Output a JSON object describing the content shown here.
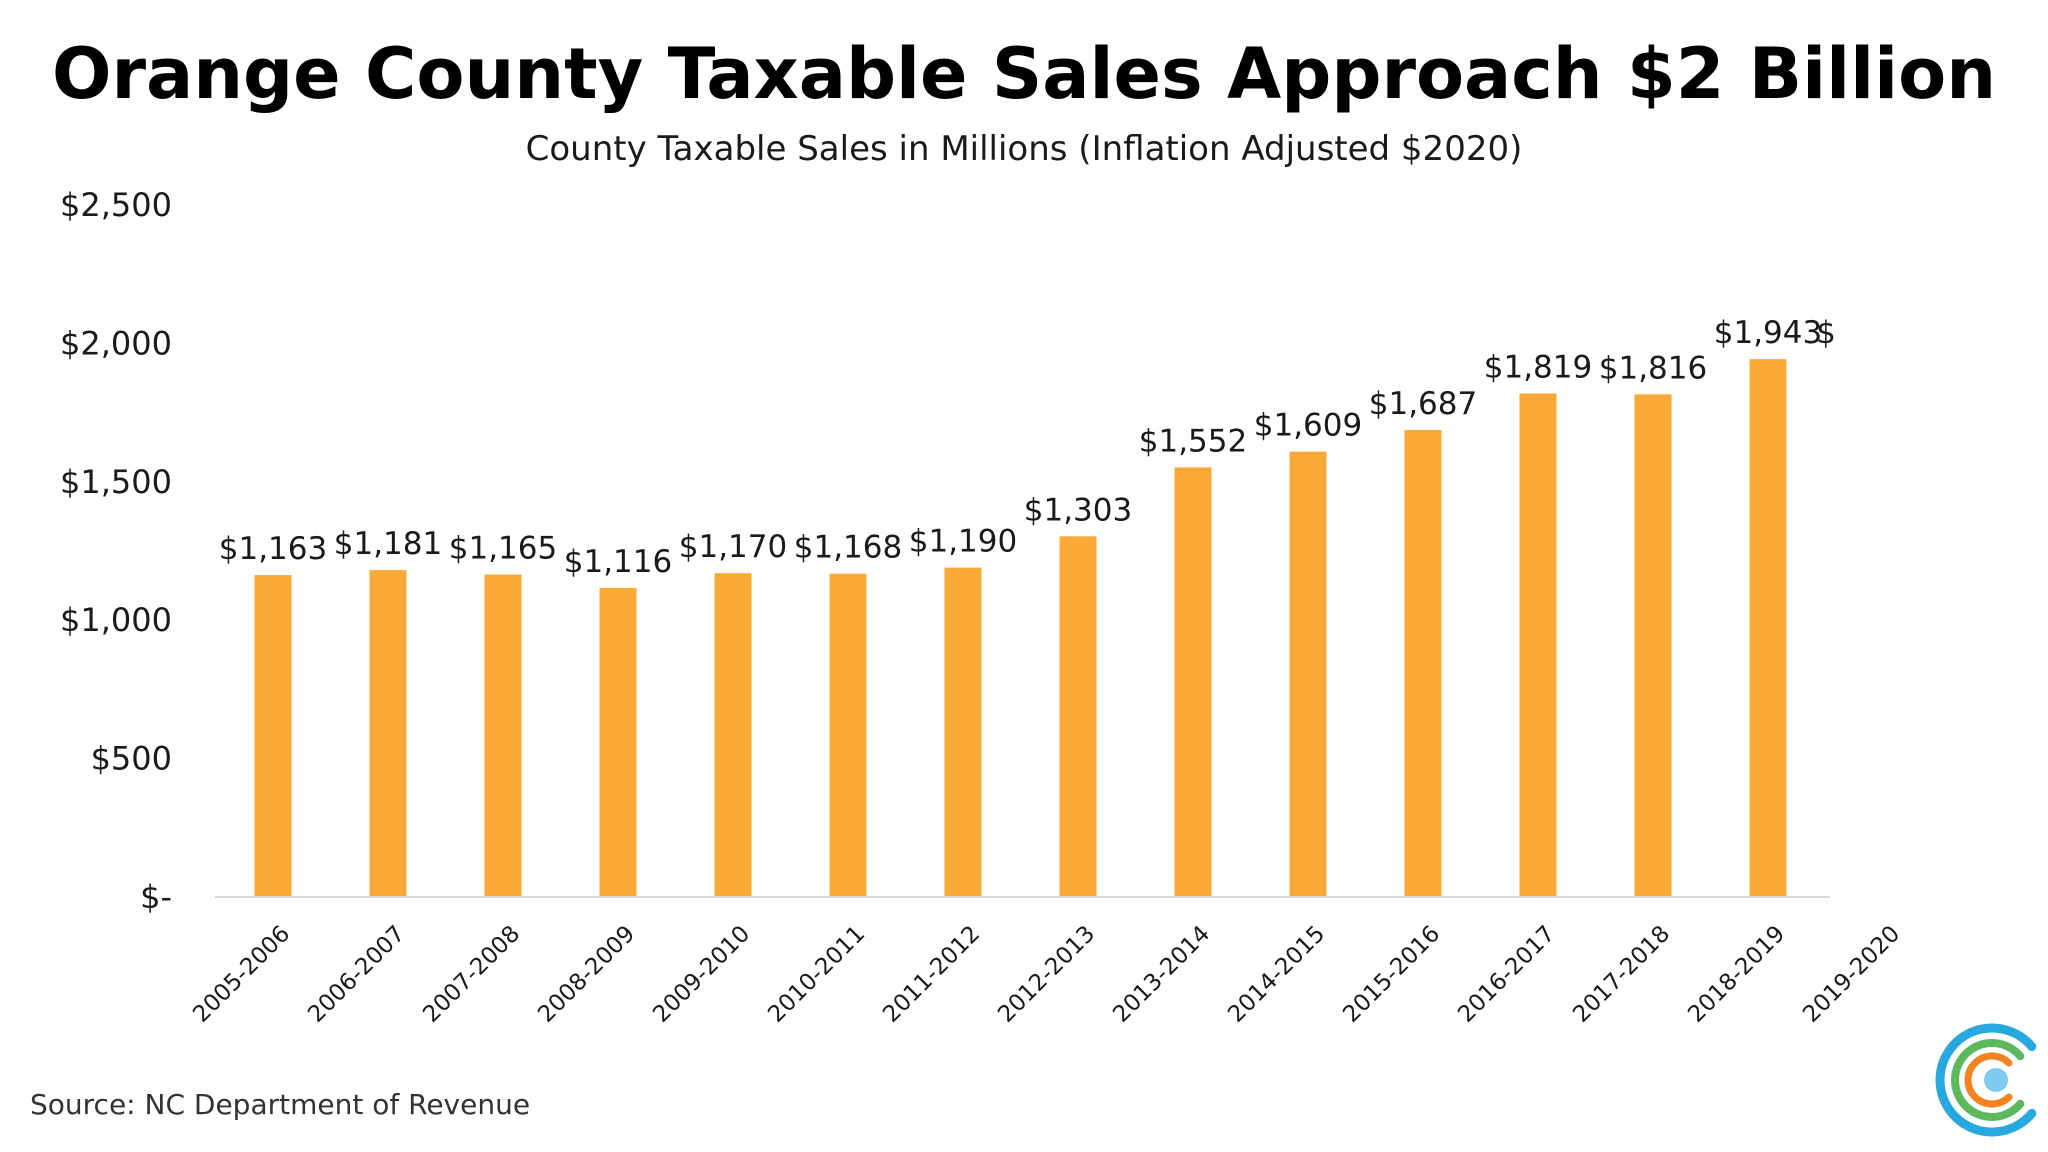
{
  "colors": {
    "bar": "#F9A935",
    "axis": "#D9D9D9",
    "text": "#1a1a1a",
    "logo_blue": "#29A8E0",
    "logo_green": "#5CB85C",
    "logo_orange": "#F58220",
    "logo_dot": "#7FCBF0"
  },
  "logo": {
    "icon": "concentric-c-logo-icon"
  },
  "source": "Source: NC Department of Revenue",
  "chart_data": {
    "type": "bar",
    "title": "Orange County Taxable Sales Approach $2 Billion",
    "subtitle": "County Taxable Sales in Millions (Inflation Adjusted $2020)",
    "xlabel": "",
    "ylabel": "",
    "ylim": [
      0,
      2500
    ],
    "yticks": [
      {
        "value": 2500,
        "label": "$2,500"
      },
      {
        "value": 2000,
        "label": "$2,000"
      },
      {
        "value": 1500,
        "label": "$1,500"
      },
      {
        "value": 1000,
        "label": "$1,000"
      },
      {
        "value": 500,
        "label": "$500"
      },
      {
        "value": 0,
        "label": "$-"
      }
    ],
    "grid": false,
    "legend": "none",
    "categories": [
      "2005-2006",
      "2006-2007",
      "2007-2008",
      "2008-2009",
      "2009-2010",
      "2010-2011",
      "2011-2012",
      "2012-2013",
      "2013-2014",
      "2014-2015",
      "2015-2016",
      "2016-2017",
      "2017-2018",
      "2018-2019",
      "2019-2020"
    ],
    "values": [
      1163,
      1181,
      1165,
      1116,
      1170,
      1168,
      1190,
      1303,
      1552,
      1609,
      1687,
      1819,
      1816,
      1943,
      null
    ],
    "data_labels": [
      "$1,163",
      "$1,181",
      "$1,165",
      "$1,116",
      "$1,170",
      "$1,168",
      "$1,190",
      "$1,303",
      "$1,552",
      "$1,609",
      "$1,687",
      "$1,819",
      "$1,816",
      "$1,943",
      "$"
    ]
  }
}
